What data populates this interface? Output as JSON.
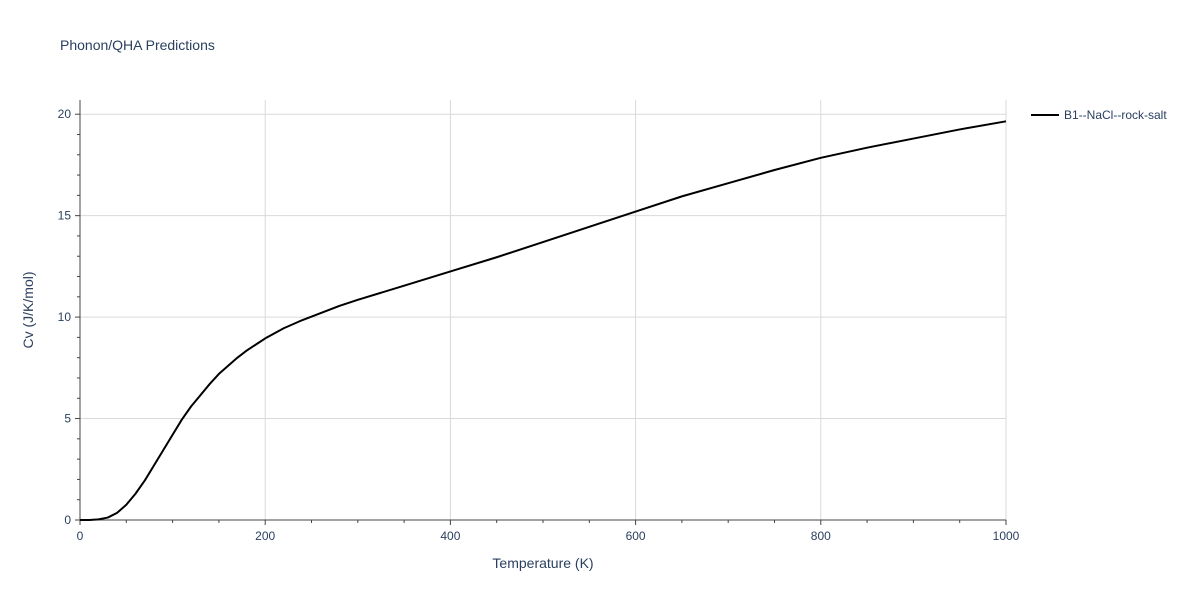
{
  "chart_data": {
    "type": "line",
    "title": "Phonon/QHA Predictions",
    "xlabel": "Temperature (K)",
    "ylabel": "Cv (J/K/mol)",
    "xlim": [
      0,
      1000
    ],
    "ylim": [
      0,
      20.7
    ],
    "xticks": [
      "0",
      "200",
      "400",
      "600",
      "800",
      "1000"
    ],
    "yticks": [
      "0",
      "5",
      "10",
      "15",
      "20"
    ],
    "xtick_values": [
      0,
      200,
      400,
      600,
      800,
      1000
    ],
    "ytick_values": [
      0,
      5,
      10,
      15,
      20
    ],
    "grid": true,
    "legend_position": "top-right",
    "series": [
      {
        "name": "B1--NaCl--rock-salt",
        "color": "#000000",
        "x": [
          0,
          10,
          20,
          30,
          40,
          50,
          60,
          70,
          80,
          90,
          100,
          110,
          120,
          130,
          140,
          150,
          160,
          170,
          180,
          190,
          200,
          220,
          240,
          260,
          280,
          300,
          350,
          400,
          450,
          500,
          550,
          600,
          650,
          700,
          750,
          800,
          850,
          900,
          950,
          1000
        ],
        "y": [
          0,
          0.0,
          0.03,
          0.12,
          0.35,
          0.75,
          1.3,
          1.95,
          2.7,
          3.45,
          4.2,
          4.95,
          5.6,
          6.15,
          6.7,
          7.2,
          7.6,
          8.0,
          8.35,
          8.65,
          8.95,
          9.45,
          9.85,
          10.2,
          10.55,
          10.85,
          11.55,
          12.25,
          12.95,
          13.7,
          14.45,
          15.2,
          15.95,
          16.6,
          17.25,
          17.85,
          18.35,
          18.8,
          19.25,
          19.65
        ]
      }
    ]
  }
}
